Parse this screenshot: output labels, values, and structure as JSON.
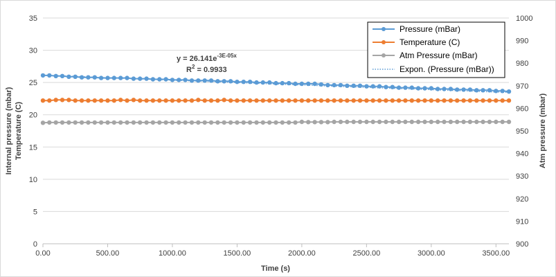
{
  "chart_data": {
    "type": "line",
    "x_axis": {
      "label": "Time (s)",
      "min": 0,
      "max": 3600,
      "ticks": [
        0,
        500,
        1000,
        1500,
        2000,
        2500,
        3000,
        3500
      ],
      "tick_labels": [
        "0.00",
        "500.00",
        "1000.00",
        "1500.00",
        "2000.00",
        "2500.00",
        "3000.00",
        "3500.00"
      ]
    },
    "y_axis_left": {
      "label_line1": "Internal pressure (mbar)",
      "label_line2": "Temperature (C)",
      "min": 0,
      "max": 35,
      "ticks": [
        0,
        5,
        10,
        15,
        20,
        25,
        30,
        35
      ],
      "tick_labels": [
        "0",
        "5",
        "10",
        "15",
        "20",
        "25",
        "30",
        "35"
      ]
    },
    "y_axis_right": {
      "label": "Atm pressure (mbar)",
      "min": 900,
      "max": 1000,
      "ticks": [
        900,
        910,
        920,
        930,
        940,
        950,
        960,
        970,
        980,
        990,
        1000
      ],
      "tick_labels": [
        "900",
        "910",
        "920",
        "930",
        "940",
        "950",
        "960",
        "970",
        "980",
        "990",
        "1000"
      ]
    },
    "gridlines": "horizontal",
    "legend_position": "top-right",
    "trendline_label": {
      "equation_prefix": "y = 26.141e",
      "equation_exponent": "-3E-05x",
      "r2_prefix": "R",
      "r2_exp": "2",
      "r2_value": " = 0.9933"
    },
    "x": [
      0,
      50,
      100,
      150,
      200,
      250,
      300,
      350,
      400,
      450,
      500,
      550,
      600,
      650,
      700,
      750,
      800,
      850,
      900,
      950,
      1000,
      1050,
      1100,
      1150,
      1200,
      1250,
      1300,
      1350,
      1400,
      1450,
      1500,
      1550,
      1600,
      1650,
      1700,
      1750,
      1800,
      1850,
      1900,
      1950,
      2000,
      2050,
      2100,
      2150,
      2200,
      2250,
      2300,
      2350,
      2400,
      2450,
      2500,
      2550,
      2600,
      2650,
      2700,
      2750,
      2800,
      2850,
      2900,
      2950,
      3000,
      3050,
      3100,
      3150,
      3200,
      3250,
      3300,
      3350,
      3400,
      3450,
      3500,
      3550,
      3600
    ],
    "series": [
      {
        "name": "Pressure (mBar)",
        "axis": "left",
        "color": "#5B9BD5",
        "values": [
          26.1,
          26.1,
          26.0,
          26.0,
          25.9,
          25.9,
          25.8,
          25.8,
          25.8,
          25.7,
          25.7,
          25.7,
          25.7,
          25.7,
          25.6,
          25.6,
          25.6,
          25.5,
          25.5,
          25.5,
          25.4,
          25.4,
          25.4,
          25.3,
          25.3,
          25.3,
          25.3,
          25.2,
          25.2,
          25.2,
          25.1,
          25.1,
          25.1,
          25.0,
          25.0,
          25.0,
          24.9,
          24.9,
          24.9,
          24.8,
          24.8,
          24.8,
          24.8,
          24.7,
          24.6,
          24.6,
          24.6,
          24.5,
          24.5,
          24.5,
          24.4,
          24.4,
          24.4,
          24.3,
          24.3,
          24.2,
          24.2,
          24.2,
          24.1,
          24.1,
          24.1,
          24.0,
          24.0,
          24.0,
          23.9,
          23.9,
          23.9,
          23.8,
          23.8,
          23.8,
          23.7,
          23.7,
          23.6
        ]
      },
      {
        "name": "Temperature (C)",
        "axis": "left",
        "color": "#ED7D31",
        "values": [
          22.2,
          22.2,
          22.3,
          22.3,
          22.3,
          22.2,
          22.2,
          22.2,
          22.2,
          22.2,
          22.2,
          22.2,
          22.3,
          22.2,
          22.3,
          22.2,
          22.2,
          22.2,
          22.2,
          22.2,
          22.2,
          22.2,
          22.2,
          22.2,
          22.3,
          22.2,
          22.2,
          22.2,
          22.3,
          22.2,
          22.2,
          22.2,
          22.2,
          22.2,
          22.2,
          22.2,
          22.2,
          22.2,
          22.2,
          22.2,
          22.2,
          22.2,
          22.2,
          22.2,
          22.2,
          22.2,
          22.2,
          22.2,
          22.2,
          22.2,
          22.2,
          22.2,
          22.2,
          22.2,
          22.2,
          22.2,
          22.2,
          22.2,
          22.2,
          22.2,
          22.2,
          22.2,
          22.2,
          22.2,
          22.2,
          22.2,
          22.2,
          22.2,
          22.2,
          22.2,
          22.2,
          22.2,
          22.2
        ]
      },
      {
        "name": "Atm Pressure (mBar)",
        "axis": "right",
        "color": "#A5A5A5",
        "values": [
          953.6,
          953.7,
          953.7,
          953.7,
          953.7,
          953.7,
          953.7,
          953.7,
          953.7,
          953.7,
          953.7,
          953.7,
          953.7,
          953.7,
          953.7,
          953.7,
          953.7,
          953.7,
          953.7,
          953.7,
          953.7,
          953.7,
          953.7,
          953.7,
          953.7,
          953.7,
          953.7,
          953.7,
          953.7,
          953.7,
          953.7,
          953.7,
          953.7,
          953.7,
          953.7,
          953.7,
          953.7,
          953.7,
          953.7,
          953.7,
          954.0,
          953.9,
          953.9,
          953.9,
          953.9,
          954.0,
          954.0,
          954.0,
          954.0,
          954.0,
          954.0,
          954.0,
          954.0,
          954.0,
          954.0,
          954.0,
          954.0,
          954.0,
          954.0,
          954.0,
          954.0,
          954.0,
          954.0,
          954.0,
          954.0,
          954.0,
          954.0,
          954.0,
          954.0,
          954.0,
          954.0,
          954.0,
          954.0
        ]
      }
    ],
    "trendline": {
      "name": "Expon. (Pressure (mBar))",
      "axis": "left",
      "color": "#5B9BD5",
      "a": 26.141,
      "b": -3e-05
    }
  }
}
